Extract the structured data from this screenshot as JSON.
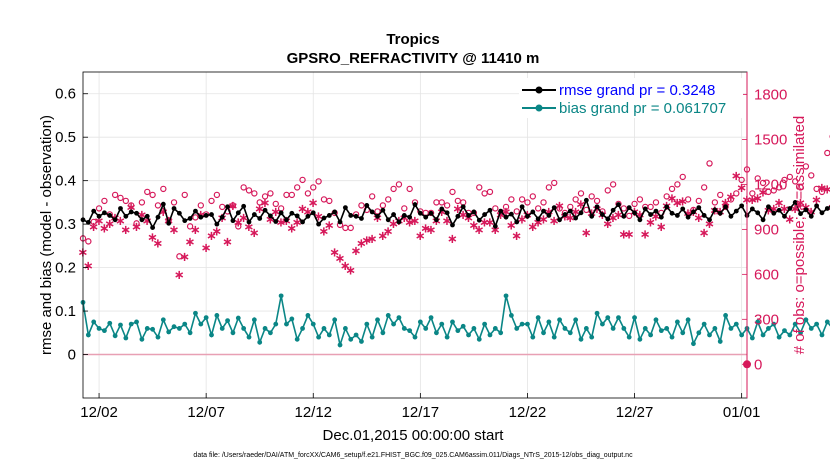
{
  "chart_data": {
    "type": "line",
    "title": "Tropics",
    "subtitle": "GPSRO_REFRACTIVITY @ 11410 m",
    "xlabel": "Dec.01,2015 00:00:00 start",
    "ylabel_left": "rmse and bias (model - observation)",
    "ylabel_right": "# of obs: o=possible; ∗=assimilated",
    "footer": "data file: /Users/raeder/DAI/ATM_forcXX/CAM6_setup/f.e21.FHIST_BGC.f09_025.CAM6assim.011/Diags_NTrS_2015-12/obs_diag_output.nc",
    "x_tick_labels": [
      "12/02",
      "12/07",
      "12/12",
      "12/17",
      "12/22",
      "12/27",
      "01/01"
    ],
    "x_tick_days": [
      1,
      6,
      11,
      16,
      21,
      26,
      31
    ],
    "xlim_days": [
      0.25,
      31.25
    ],
    "ylim_left": [
      -0.1,
      0.65
    ],
    "yticks_left": [
      0,
      0.1,
      0.2,
      0.3,
      0.4,
      0.5,
      0.6
    ],
    "yticks_left_labels": [
      "0",
      "0.1",
      "0.2",
      "0.3",
      "0.4",
      "0.5",
      "0.6"
    ],
    "ylim_right": [
      -225,
      1950
    ],
    "yticks_right": [
      0,
      300,
      600,
      900,
      1200,
      1500,
      1800
    ],
    "yticks_right_labels": [
      "0",
      "300",
      "600",
      "900",
      "1200",
      "1500",
      "1800"
    ],
    "legend": [
      {
        "name": "rmse",
        "label": "rmse grand pr = 0.3248"
      },
      {
        "name": "bias",
        "label": "bias grand pr = 0.061707"
      }
    ],
    "colors": {
      "rmse": "#000000",
      "bias": "#0a8686",
      "nobs": "#d6185a",
      "legend_rmse_text": "#0000ff",
      "legend_bias_text": "#0a8686",
      "zero_line": "#e8a0b4",
      "right_axis": "#d6185a"
    },
    "x_start_day": 0.25,
    "x_step_days": 0.25,
    "series": [
      {
        "name": "rmse",
        "values": [
          0.31,
          0.304,
          0.33,
          0.318,
          0.326,
          0.32,
          0.31,
          0.336,
          0.318,
          0.328,
          0.325,
          0.31,
          0.318,
          0.292,
          0.316,
          0.346,
          0.302,
          0.336,
          0.325,
          0.308,
          0.313,
          0.33,
          0.316,
          0.32,
          0.322,
          0.3,
          0.316,
          0.34,
          0.308,
          0.326,
          0.341,
          0.305,
          0.322,
          0.313,
          0.332,
          0.319,
          0.306,
          0.326,
          0.31,
          0.325,
          0.319,
          0.305,
          0.318,
          0.326,
          0.3,
          0.314,
          0.32,
          0.328,
          0.305,
          0.338,
          0.32,
          0.318,
          0.313,
          0.343,
          0.328,
          0.318,
          0.332,
          0.31,
          0.322,
          0.305,
          0.32,
          0.316,
          0.345,
          0.325,
          0.316,
          0.325,
          0.31,
          0.335,
          0.326,
          0.298,
          0.318,
          0.34,
          0.32,
          0.328,
          0.309,
          0.322,
          0.332,
          0.295,
          0.33,
          0.316,
          0.323,
          0.305,
          0.34,
          0.318,
          0.328,
          0.312,
          0.33,
          0.32,
          0.338,
          0.31,
          0.322,
          0.33,
          0.314,
          0.326,
          0.355,
          0.318,
          0.34,
          0.322,
          0.312,
          0.332,
          0.345,
          0.318,
          0.338,
          0.326,
          0.31,
          0.335,
          0.322,
          0.33,
          0.316,
          0.34,
          0.325,
          0.32,
          0.335,
          0.316,
          0.328,
          0.338,
          0.32,
          0.31,
          0.333,
          0.325,
          0.34,
          0.318,
          0.33,
          0.342,
          0.32,
          0.335,
          0.326,
          0.31,
          0.34,
          0.325,
          0.332,
          0.318,
          0.336,
          0.35,
          0.324,
          0.333,
          0.318,
          0.342,
          0.326,
          0.336,
          0.345,
          0.323,
          0.34,
          0.328,
          0.318,
          0.336,
          0.33,
          0.342,
          0.32,
          0.338,
          0.326,
          0.342,
          0.33,
          0.335,
          0.345,
          0.322,
          0.338,
          0.33,
          0.32,
          0.336,
          0.33,
          0.342,
          0.322,
          0.34,
          0.36,
          0.332,
          0.372,
          0.33,
          0.318,
          0.345,
          0.33,
          0.3,
          0.338,
          0.326,
          0.342,
          0.32,
          0.336,
          0.35,
          0.318,
          0.33,
          0.306,
          0.326,
          0.34,
          0.312,
          0.325,
          0.33,
          0.335,
          0.328,
          0.338,
          0.33,
          0.322,
          0.34,
          0.335,
          0.333,
          0.34,
          0.345,
          0.33,
          0.318,
          0.333,
          0.322,
          0.338,
          0.336,
          0.342,
          0.32,
          0.33,
          0.345,
          0.35,
          0.33,
          0.34,
          0.338,
          0.336,
          0.342,
          0.333,
          0.345,
          0.332,
          0.34,
          0.338,
          0.344,
          0.356,
          0.33,
          0.342,
          0.34
        ]
      },
      {
        "name": "bias",
        "values": [
          0.12,
          0.045,
          0.075,
          0.06,
          0.055,
          0.072,
          0.043,
          0.068,
          0.038,
          0.07,
          0.075,
          0.035,
          0.06,
          0.058,
          0.04,
          0.08,
          0.052,
          0.064,
          0.06,
          0.07,
          0.05,
          0.095,
          0.07,
          0.085,
          0.045,
          0.09,
          0.06,
          0.078,
          0.05,
          0.084,
          0.06,
          0.04,
          0.08,
          0.028,
          0.06,
          0.05,
          0.07,
          0.135,
          0.07,
          0.082,
          0.035,
          0.06,
          0.09,
          0.07,
          0.04,
          0.06,
          0.045,
          0.08,
          0.022,
          0.06,
          0.035,
          0.045,
          0.03,
          0.07,
          0.04,
          0.08,
          0.05,
          0.09,
          0.07,
          0.085,
          0.06,
          0.055,
          0.04,
          0.075,
          0.06,
          0.085,
          0.05,
          0.07,
          0.04,
          0.075,
          0.055,
          0.065,
          0.045,
          0.06,
          0.035,
          0.07,
          0.045,
          0.06,
          0.05,
          0.135,
          0.09,
          0.06,
          0.07,
          0.07,
          0.04,
          0.085,
          0.05,
          0.075,
          0.04,
          0.08,
          0.06,
          0.05,
          0.08,
          0.035,
          0.06,
          0.04,
          0.095,
          0.07,
          0.085,
          0.06,
          0.085,
          0.06,
          0.04,
          0.085,
          0.035,
          0.06,
          0.045,
          0.08,
          0.055,
          0.06,
          0.04,
          0.075,
          0.05,
          0.08,
          0.025,
          0.05,
          0.07,
          0.045,
          0.06,
          0.03,
          0.09,
          0.06,
          0.07,
          0.045,
          0.06,
          0.038,
          0.075,
          0.045,
          0.06,
          0.07,
          0.04,
          0.055,
          0.045,
          0.07,
          0.05,
          0.08,
          0.06,
          0.07,
          0.045,
          0.075,
          0.06,
          0.05,
          0.07,
          0.04,
          0.078,
          0.05,
          0.06,
          0.035,
          0.05,
          0.04,
          0.06,
          0.055,
          0.075,
          0.045,
          0.03,
          0.06,
          0.04,
          0.065,
          0.052,
          0.095,
          0.07,
          0.085,
          0.045,
          0.08,
          0.06,
          0.07,
          0.04,
          0.065,
          0.045,
          0.06,
          0.085,
          0.05,
          0.075,
          0.04,
          0.09,
          0.06,
          0.08,
          0.045,
          0.07,
          0.035,
          0.08,
          0.04,
          0.075,
          0.048,
          0.06,
          0.08,
          0.06,
          0.075,
          0.04,
          0.06,
          0.03,
          0.07,
          0.05,
          0.085,
          0.06,
          0.07,
          0.025,
          0.06,
          0.05,
          0.08,
          0.04,
          0.055,
          0.03,
          0.07,
          0.045,
          0.02,
          0.04,
          0.06,
          0.025,
          0.05,
          0.045,
          0.035,
          0.02,
          0.03,
          0.05,
          0.01,
          0.06,
          0.1,
          0.045,
          0.04,
          0.06,
          0.042,
          0.035
        ]
      },
      {
        "name": "possible_obs",
        "marker": "o",
        "values": [
          840,
          820,
          950,
          1040,
          1090,
          1000,
          1130,
          1110,
          1090,
          1060,
          940,
          1080,
          1150,
          1130,
          1060,
          1170,
          960,
          1080,
          720,
          1130,
          920,
          980,
          1060,
          1000,
          1090,
          1130,
          1050,
          1020,
          1060,
          920,
          1180,
          1160,
          1140,
          1080,
          1120,
          1140,
          1070,
          1040,
          1130,
          1130,
          1180,
          1230,
          1140,
          1180,
          1220,
          1100,
          1090,
          1010,
          930,
          910,
          910,
          1000,
          1060,
          1030,
          1120,
          1020,
          1060,
          1100,
          1170,
          1200,
          1040,
          1170,
          1080,
          1020,
          1010,
          1010,
          1080,
          1080,
          1060,
          1150,
          1090,
          1080,
          1010,
          1010,
          1180,
          1140,
          1150,
          1040,
          1010,
          1050,
          1100,
          1020,
          1100,
          1080,
          1120,
          1040,
          1080,
          1180,
          1210,
          1040,
          1010,
          1050,
          1100,
          1140,
          1030,
          1120,
          1090,
          1020,
          1160,
          1200,
          1070,
          1040,
          990,
          1070,
          1100,
          1050,
          1050,
          1080,
          1010,
          1120,
          1170,
          1200,
          1250,
          1100,
          1030,
          1090,
          1180,
          1340,
          1080,
          1130,
          1050,
          1100,
          1140,
          1230,
          1300,
          1140,
          1240,
          1210,
          1150,
          1160,
          1180,
          1230,
          1250,
          1220,
          1180,
          1320,
          1260,
          1170,
          1150,
          1410,
          1520,
          1280,
          1330,
          1210,
          1150,
          1120,
          1050,
          1100,
          1180,
          1210,
          1260,
          1140,
          1060,
          1180,
          1110,
          1190,
          1150,
          1210,
          1350,
          1330,
          1210,
          1040,
          1050,
          1130,
          1180,
          1120,
          1210,
          1140,
          1210,
          1260,
          1330,
          1040,
          1060,
          1120,
          1140,
          1210,
          1230,
          1220,
          1280,
          1250,
          1320,
          1160,
          1110,
          1140,
          1210,
          1270,
          1390,
          1420,
          1480,
          1440,
          1400,
          1300,
          1180,
          1150,
          1200,
          1250,
          1070,
          1020,
          1080,
          1020,
          1130,
          1200,
          1290,
          1400,
          1280,
          1180,
          1110,
          1160,
          1280,
          1330,
          1240,
          1240,
          1170,
          1110,
          1360,
          1290,
          1210,
          1300,
          1260,
          1210,
          1310,
          1350,
          1450,
          1400,
          1460,
          1190,
          1420,
          1340,
          1280
        ]
      },
      {
        "name": "assimilated_obs",
        "marker": "*",
        "values": [
          750,
          660,
          920,
          960,
          910,
          940,
          980,
          960,
          900,
          1050,
          920,
          1000,
          960,
          850,
          810,
          1020,
          960,
          900,
          600,
          720,
          820,
          900,
          1000,
          780,
          860,
          890,
          980,
          820,
          1060,
          950,
          980,
          920,
          880,
          1040,
          1080,
          970,
          1020,
          950,
          960,
          910,
          950,
          1040,
          1020,
          1080,
          990,
          890,
          930,
          750,
          710,
          660,
          630,
          760,
          810,
          830,
          840,
          980,
          860,
          890,
          940,
          960,
          980,
          950,
          960,
          860,
          910,
          900,
          960,
          1020,
          960,
          840,
          1040,
          1000,
          980,
          930,
          900,
          950,
          950,
          900,
          1000,
          1020,
          930,
          860,
          970,
          1000,
          920,
          950,
          970,
          1020,
          960,
          1060,
          990,
          980,
          1020,
          1070,
          880,
          1010,
          1040,
          1000,
          940,
          980,
          1000,
          870,
          870,
          1020,
          1000,
          870,
          950,
          990,
          920,
          1060,
          1110,
          1080,
          1090,
          1010,
          1020,
          980,
          880,
          940,
          1030,
          1020,
          1080,
          1120,
          1260,
          1180,
          1100,
          1100,
          1110,
          1150,
          1030,
          1040,
          1080,
          1040,
          970,
          1040,
          1080,
          1050,
          1020,
          1100,
          1180,
          1170,
          1050,
          1040,
          1020,
          1030,
          1070,
          1000,
          1040,
          1100,
          1040,
          1060,
          1090,
          1010,
          1000,
          1120,
          1090,
          1160,
          1080,
          1040,
          1060,
          1100,
          1140,
          1180,
          1060,
          1040,
          1100,
          1080,
          1060,
          1120,
          1050,
          1230,
          1100,
          1070,
          1060,
          1120,
          1150,
          1200,
          1220,
          1200,
          1260,
          1280,
          1320,
          1360,
          1280,
          1200,
          1140,
          1080,
          1100,
          1060,
          960,
          900,
          980,
          1060,
          1000,
          1060,
          1100,
          1130,
          1200,
          1140,
          1060,
          1040,
          1080,
          1100,
          1180,
          1200,
          1150,
          1100,
          1080,
          1030,
          1090,
          1150,
          1200,
          1250,
          1180,
          1220,
          1300,
          1150,
          1200,
          1260,
          1330,
          1300,
          1280,
          1220,
          1200,
          1260,
          1320,
          1280,
          1230
        ]
      }
    ]
  }
}
